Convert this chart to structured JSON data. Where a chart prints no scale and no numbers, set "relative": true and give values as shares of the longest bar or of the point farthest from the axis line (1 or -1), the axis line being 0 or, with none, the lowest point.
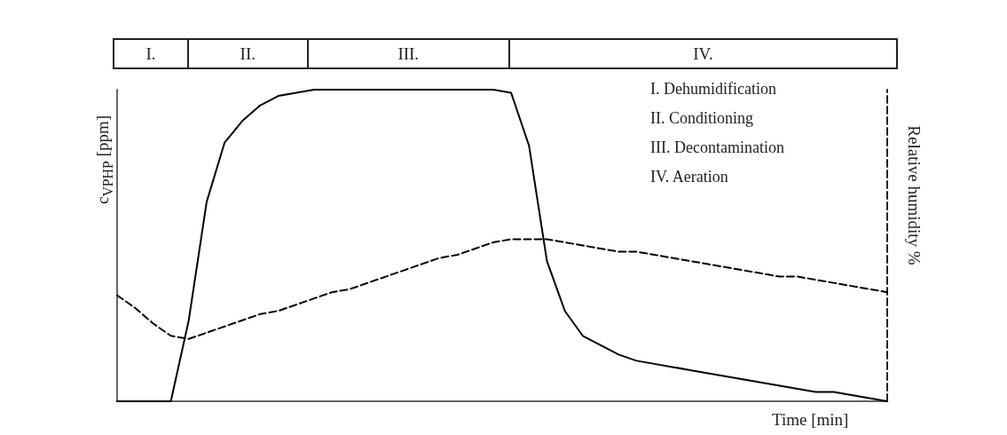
{
  "chart_data": {
    "type": "line",
    "relative": true,
    "xlabel": "Time [min]",
    "ylabel": "c$_{VPHP}$ [ppm]",
    "y2label": "Relative humidity %",
    "categories": [
      null,
      null,
      null,
      null,
      null,
      null,
      null,
      null,
      null,
      null,
      null,
      null,
      null,
      null,
      null,
      null,
      null,
      null,
      null,
      null,
      null,
      null,
      null,
      null,
      null,
      null,
      null,
      null,
      null,
      null,
      null,
      null,
      null,
      null,
      null,
      null,
      null,
      null,
      null,
      null,
      null,
      null,
      null,
      null
    ],
    "series": [
      {
        "color": "#000000",
        "line_style": "solid",
        "values": [
          0,
          0,
          0,
          0,
          0.26,
          0.64,
          0.83,
          0.9,
          0.95,
          0.98,
          0.99,
          1,
          1,
          1,
          1,
          1,
          1,
          1,
          1,
          1,
          1,
          1,
          0.99,
          0.82,
          0.45,
          0.29,
          0.21,
          0.18,
          0.15,
          0.13,
          0.12,
          0.11,
          0.1,
          0.09,
          0.08,
          0.07,
          0.06,
          0.05,
          0.04,
          0.03,
          0.03,
          0.02,
          0.01,
          0
        ]
      },
      {
        "color": "#000000",
        "line_style": "dashed",
        "values": [
          0.34,
          0.3,
          0.25,
          0.21,
          0.2,
          0.22,
          0.24,
          0.26,
          0.28,
          0.29,
          0.31,
          0.33,
          0.35,
          0.36,
          0.38,
          0.4,
          0.42,
          0.44,
          0.46,
          0.47,
          0.49,
          0.51,
          0.52,
          0.52,
          0.52,
          0.51,
          0.5,
          0.49,
          0.48,
          0.48,
          0.47,
          0.46,
          0.45,
          0.44,
          0.43,
          0.42,
          0.41,
          0.4,
          0.4,
          0.39,
          0.38,
          0.37,
          0.36,
          0.35
        ]
      }
    ],
    "annotations": [
      "I.",
      "II.",
      "III.",
      "IV.",
      "I. Dehumidification",
      "II. Conditioning",
      "III. Decontamination",
      "IV. Aeration"
    ],
    "marker": "none"
  }
}
